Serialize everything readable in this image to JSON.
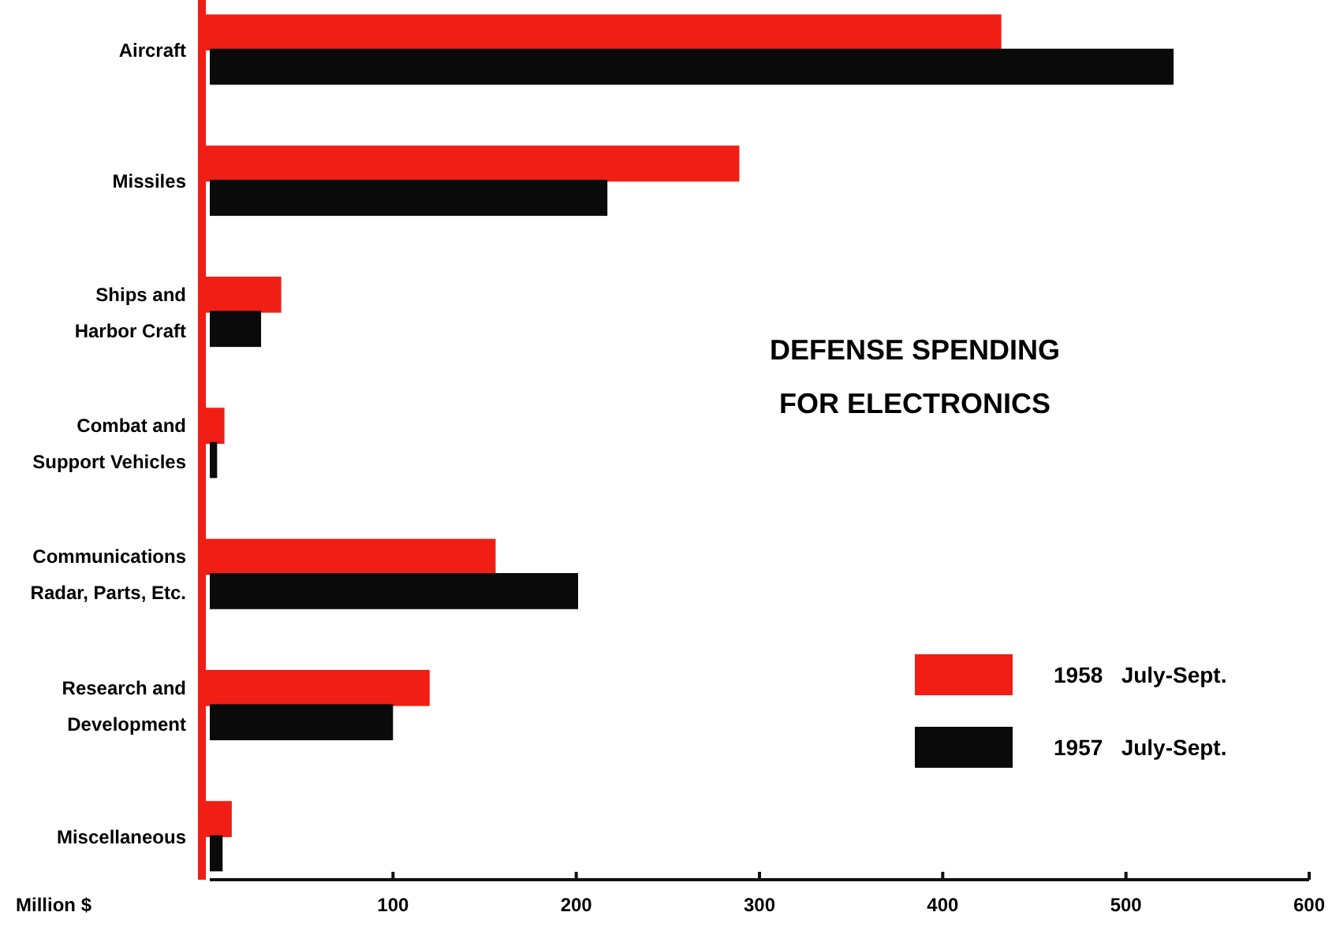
{
  "chart_data": {
    "type": "bar",
    "orientation": "horizontal",
    "title": "DEFENSE SPENDING\nFOR ELECTRONICS",
    "xlabel": "Million $",
    "categories": [
      "Aircraft",
      "Missiles",
      "Ships and\nHarbor Craft",
      "Combat and\nSupport Vehicles",
      "Communications\nRadar, Parts, Etc.",
      "Research and\nDevelopment",
      "Miscellaneous"
    ],
    "series": [
      {
        "name": "1958   July-Sept.",
        "color": "#f01e14",
        "values": [
          432,
          289,
          39,
          8,
          156,
          120,
          12
        ]
      },
      {
        "name": "1957   July-Sept.",
        "color": "#0a0a0a",
        "values": [
          526,
          217,
          28,
          4,
          201,
          100,
          7
        ]
      }
    ],
    "xlim": [
      0,
      600
    ],
    "xticks": [
      100,
      200,
      300,
      400,
      500,
      600
    ],
    "legend": "bottom right"
  }
}
